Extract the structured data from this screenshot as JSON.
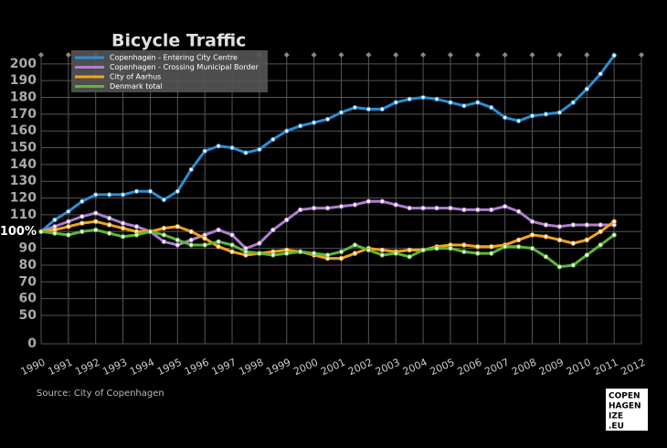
{
  "chart_data": {
    "type": "line",
    "title": "Bicycle Traffic",
    "source": "Source: City of Copenhagen",
    "logo": [
      "COPEN",
      "HAGEN",
      "IZE",
      ".EU"
    ],
    "x": [
      1990,
      1990.5,
      1991,
      1991.5,
      1992,
      1992.5,
      1993,
      1993.5,
      1994,
      1994.5,
      1995,
      1995.5,
      1996,
      1996.5,
      1997,
      1997.5,
      1998,
      1998.5,
      1999,
      1999.5,
      2000,
      2000.5,
      2001,
      2001.5,
      2002,
      2002.5,
      2003,
      2003.5,
      2004,
      2004.5,
      2005,
      2005.5,
      2006,
      2006.5,
      2007,
      2007.5,
      2008,
      2008.5,
      2009,
      2009.5,
      2010,
      2010.5,
      2011
    ],
    "series": [
      {
        "name": "Copenhagen - Entering City Centre",
        "color": "#2a8fd6",
        "values": [
          100,
          107,
          112,
          118,
          122,
          122,
          122,
          124,
          124,
          119,
          124,
          137,
          148,
          151,
          150,
          147,
          149,
          155,
          160,
          163,
          165,
          167,
          171,
          174,
          173,
          173,
          177,
          179,
          180,
          179,
          177,
          175,
          177,
          174,
          168,
          166,
          169,
          170,
          171,
          177,
          185,
          194,
          205
        ]
      },
      {
        "name": "Copenhagen - Crossing Municipal Border",
        "color": "#b07fd0",
        "values": [
          100,
          103,
          106,
          109,
          111,
          108,
          105,
          103,
          100,
          94,
          92,
          95,
          98,
          101,
          98,
          90,
          93,
          101,
          107,
          113,
          114,
          114,
          115,
          116,
          118,
          118,
          116,
          114,
          114,
          114,
          114,
          113,
          113,
          113,
          115,
          112,
          106,
          104,
          103,
          104,
          104,
          104,
          104
        ]
      },
      {
        "name": "City of Aarhus",
        "color": "#f5a31a",
        "values": [
          100,
          101,
          103,
          105,
          106,
          104,
          102,
          100,
          100,
          102,
          103,
          100,
          96,
          91,
          88,
          86,
          87,
          88,
          89,
          88,
          86,
          84,
          84,
          87,
          90,
          89,
          88,
          89,
          89,
          91,
          92,
          92,
          91,
          91,
          92,
          95,
          98,
          97,
          95,
          93,
          95,
          100,
          106
        ]
      },
      {
        "name": "Denmark total",
        "color": "#5cb83a",
        "values": [
          100,
          99,
          98,
          100,
          101,
          99,
          97,
          98,
          100,
          98,
          95,
          92,
          92,
          94,
          92,
          88,
          87,
          86,
          87,
          88,
          87,
          86,
          88,
          92,
          89,
          86,
          87,
          85,
          89,
          90,
          90,
          88,
          87,
          87,
          91,
          91,
          90,
          85,
          79,
          80,
          86,
          92,
          98
        ]
      }
    ],
    "xlim": [
      1990,
      2012
    ],
    "xticks": [
      1990,
      1991,
      1992,
      1993,
      1994,
      1995,
      1996,
      1997,
      1998,
      1999,
      2000,
      2001,
      2002,
      2003,
      2004,
      2005,
      2006,
      2007,
      2008,
      2009,
      2010,
      2011,
      2012
    ],
    "ylim": [
      0,
      207
    ],
    "yticks": [
      0,
      50,
      60,
      70,
      80,
      90,
      {
        "value": 100,
        "label": "100%"
      },
      110,
      120,
      130,
      140,
      150,
      160,
      170,
      180,
      190,
      200
    ],
    "grid": true
  }
}
